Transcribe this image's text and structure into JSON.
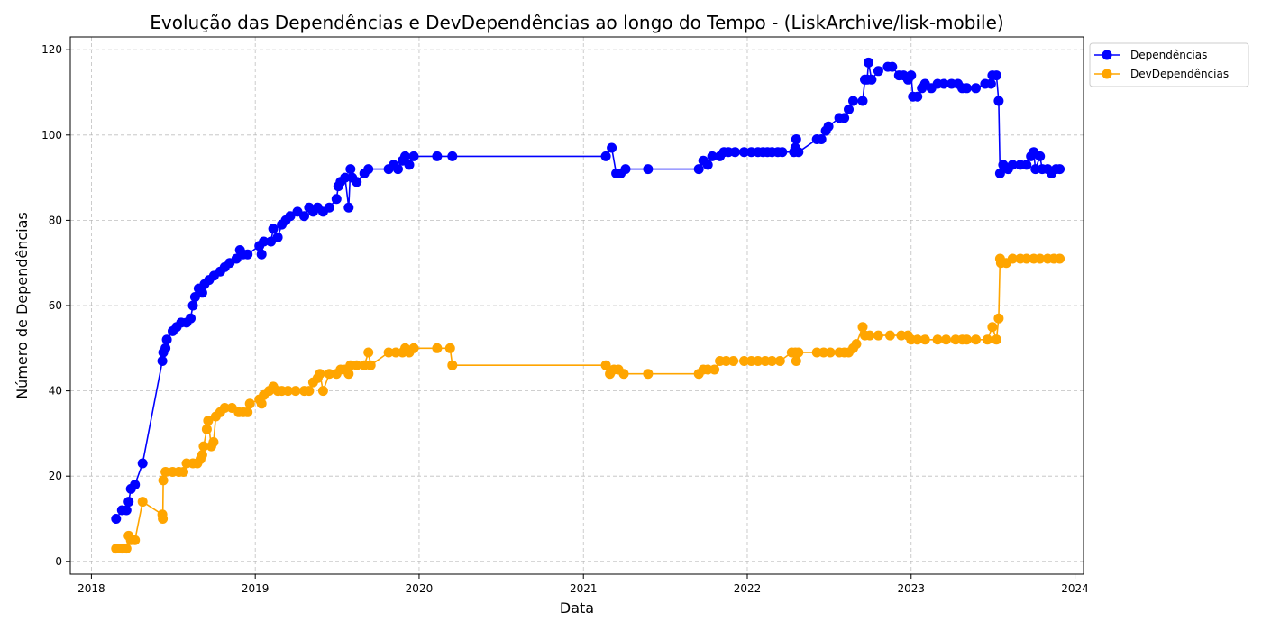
{
  "chart_data": {
    "type": "line",
    "title": "Evolução das Dependências e DevDependências ao longo do Tempo - (LiskArchive/lisk-mobile)",
    "xlabel": "Data",
    "ylabel": "Número de Dependências",
    "xlim": [
      "2017-11-15",
      "2024-01-20"
    ],
    "ylim": [
      -3,
      123
    ],
    "x_ticks": [
      "2018",
      "2019",
      "2020",
      "2021",
      "2022",
      "2023",
      "2024"
    ],
    "y_ticks": [
      0,
      20,
      40,
      60,
      80,
      100,
      120
    ],
    "grid": true,
    "legend_position": "upper-right outside",
    "colors": {
      "Dependências": "#0000ff",
      "DevDependências": "#ffa500"
    },
    "series": [
      {
        "name": "Dependências",
        "color": "#0000ff",
        "points": [
          [
            "2018-02-25",
            10
          ],
          [
            "2018-03-10",
            12
          ],
          [
            "2018-03-20",
            12
          ],
          [
            "2018-03-25",
            14
          ],
          [
            "2018-03-30",
            17
          ],
          [
            "2018-04-08",
            18
          ],
          [
            "2018-04-25",
            23
          ],
          [
            "2018-06-08",
            47
          ],
          [
            "2018-06-10",
            49
          ],
          [
            "2018-06-15",
            50
          ],
          [
            "2018-06-18",
            52
          ],
          [
            "2018-07-01",
            54
          ],
          [
            "2018-07-10",
            55
          ],
          [
            "2018-07-20",
            56
          ],
          [
            "2018-08-01",
            56
          ],
          [
            "2018-08-10",
            57
          ],
          [
            "2018-08-15",
            60
          ],
          [
            "2018-08-20",
            62
          ],
          [
            "2018-08-28",
            64
          ],
          [
            "2018-09-05",
            63
          ],
          [
            "2018-09-10",
            65
          ],
          [
            "2018-09-20",
            66
          ],
          [
            "2018-10-01",
            67
          ],
          [
            "2018-10-15",
            68
          ],
          [
            "2018-10-25",
            69
          ],
          [
            "2018-11-05",
            70
          ],
          [
            "2018-11-20",
            71
          ],
          [
            "2018-11-28",
            73
          ],
          [
            "2018-12-05",
            72
          ],
          [
            "2018-12-15",
            72
          ],
          [
            "2019-01-10",
            74
          ],
          [
            "2019-01-15",
            72
          ],
          [
            "2019-01-20",
            75
          ],
          [
            "2019-02-05",
            75
          ],
          [
            "2019-02-10",
            78
          ],
          [
            "2019-02-20",
            76
          ],
          [
            "2019-03-01",
            79
          ],
          [
            "2019-03-10",
            80
          ],
          [
            "2019-03-20",
            81
          ],
          [
            "2019-04-05",
            82
          ],
          [
            "2019-04-20",
            81
          ],
          [
            "2019-05-01",
            83
          ],
          [
            "2019-05-10",
            82
          ],
          [
            "2019-05-20",
            83
          ],
          [
            "2019-06-01",
            82
          ],
          [
            "2019-06-15",
            83
          ],
          [
            "2019-07-01",
            85
          ],
          [
            "2019-07-05",
            88
          ],
          [
            "2019-07-10",
            89
          ],
          [
            "2019-07-20",
            90
          ],
          [
            "2019-07-28",
            83
          ],
          [
            "2019-08-01",
            92
          ],
          [
            "2019-08-05",
            90
          ],
          [
            "2019-08-15",
            89
          ],
          [
            "2019-09-01",
            91
          ],
          [
            "2019-09-10",
            92
          ],
          [
            "2019-10-25",
            92
          ],
          [
            "2019-11-05",
            93
          ],
          [
            "2019-11-15",
            92
          ],
          [
            "2019-11-25",
            94
          ],
          [
            "2019-12-01",
            95
          ],
          [
            "2019-12-10",
            93
          ],
          [
            "2019-12-20",
            95
          ],
          [
            "2020-02-10",
            95
          ],
          [
            "2020-03-15",
            95
          ],
          [
            "2021-02-20",
            95
          ],
          [
            "2021-03-05",
            97
          ],
          [
            "2021-03-15",
            91
          ],
          [
            "2021-03-25",
            91
          ],
          [
            "2021-04-05",
            92
          ],
          [
            "2021-05-25",
            92
          ],
          [
            "2021-09-15",
            92
          ],
          [
            "2021-09-25",
            94
          ],
          [
            "2021-10-05",
            93
          ],
          [
            "2021-10-15",
            95
          ],
          [
            "2021-11-01",
            95
          ],
          [
            "2021-11-10",
            96
          ],
          [
            "2021-11-20",
            96
          ],
          [
            "2021-12-05",
            96
          ],
          [
            "2021-12-25",
            96
          ],
          [
            "2022-01-10",
            96
          ],
          [
            "2022-01-25",
            96
          ],
          [
            "2022-02-05",
            96
          ],
          [
            "2022-02-15",
            96
          ],
          [
            "2022-02-25",
            96
          ],
          [
            "2022-03-10",
            96
          ],
          [
            "2022-03-20",
            96
          ],
          [
            "2022-04-15",
            96
          ],
          [
            "2022-04-18",
            97
          ],
          [
            "2022-04-20",
            99
          ],
          [
            "2022-04-25",
            96
          ],
          [
            "2022-06-05",
            99
          ],
          [
            "2022-06-15",
            99
          ],
          [
            "2022-06-25",
            101
          ],
          [
            "2022-07-01",
            102
          ],
          [
            "2022-07-25",
            104
          ],
          [
            "2022-08-05",
            104
          ],
          [
            "2022-08-15",
            106
          ],
          [
            "2022-08-25",
            108
          ],
          [
            "2022-09-15",
            108
          ],
          [
            "2022-09-20",
            113
          ],
          [
            "2022-09-25",
            113
          ],
          [
            "2022-09-28",
            117
          ],
          [
            "2022-10-05",
            113
          ],
          [
            "2022-10-20",
            115
          ],
          [
            "2022-11-10",
            116
          ],
          [
            "2022-11-20",
            116
          ],
          [
            "2022-12-05",
            114
          ],
          [
            "2022-12-15",
            114
          ],
          [
            "2022-12-25",
            113
          ],
          [
            "2023-01-01",
            114
          ],
          [
            "2023-01-05",
            109
          ],
          [
            "2023-01-15",
            109
          ],
          [
            "2023-01-25",
            111
          ],
          [
            "2023-02-01",
            112
          ],
          [
            "2023-02-15",
            111
          ],
          [
            "2023-03-01",
            112
          ],
          [
            "2023-03-15",
            112
          ],
          [
            "2023-04-01",
            112
          ],
          [
            "2023-04-15",
            112
          ],
          [
            "2023-04-25",
            111
          ],
          [
            "2023-05-05",
            111
          ],
          [
            "2023-05-25",
            111
          ],
          [
            "2023-06-15",
            112
          ],
          [
            "2023-06-28",
            112
          ],
          [
            "2023-07-01",
            114
          ],
          [
            "2023-07-10",
            114
          ],
          [
            "2023-07-15",
            108
          ],
          [
            "2023-07-18",
            91
          ],
          [
            "2023-07-25",
            93
          ],
          [
            "2023-08-05",
            92
          ],
          [
            "2023-08-15",
            93
          ],
          [
            "2023-09-01",
            93
          ],
          [
            "2023-09-15",
            93
          ],
          [
            "2023-09-25",
            95
          ],
          [
            "2023-10-01",
            96
          ],
          [
            "2023-10-05",
            92
          ],
          [
            "2023-10-15",
            95
          ],
          [
            "2023-10-20",
            92
          ],
          [
            "2023-11-01",
            92
          ],
          [
            "2023-11-10",
            91
          ],
          [
            "2023-11-20",
            92
          ],
          [
            "2023-11-28",
            92
          ]
        ]
      },
      {
        "name": "DevDependências",
        "color": "#ffa500",
        "points": [
          [
            "2018-02-25",
            3
          ],
          [
            "2018-03-10",
            3
          ],
          [
            "2018-03-20",
            3
          ],
          [
            "2018-03-25",
            6
          ],
          [
            "2018-03-30",
            5
          ],
          [
            "2018-04-08",
            5
          ],
          [
            "2018-04-25",
            14
          ],
          [
            "2018-06-08",
            11
          ],
          [
            "2018-06-09",
            10
          ],
          [
            "2018-06-10",
            19
          ],
          [
            "2018-06-15",
            21
          ],
          [
            "2018-07-01",
            21
          ],
          [
            "2018-07-15",
            21
          ],
          [
            "2018-07-25",
            21
          ],
          [
            "2018-08-01",
            23
          ],
          [
            "2018-08-15",
            23
          ],
          [
            "2018-08-25",
            23
          ],
          [
            "2018-09-01",
            24
          ],
          [
            "2018-09-05",
            25
          ],
          [
            "2018-09-08",
            27
          ],
          [
            "2018-09-15",
            31
          ],
          [
            "2018-09-18",
            33
          ],
          [
            "2018-09-25",
            27
          ],
          [
            "2018-09-30",
            28
          ],
          [
            "2018-10-05",
            34
          ],
          [
            "2018-10-15",
            35
          ],
          [
            "2018-10-25",
            36
          ],
          [
            "2018-11-10",
            36
          ],
          [
            "2018-11-25",
            35
          ],
          [
            "2018-12-05",
            35
          ],
          [
            "2018-12-15",
            35
          ],
          [
            "2018-12-20",
            37
          ],
          [
            "2019-01-10",
            38
          ],
          [
            "2019-01-15",
            37
          ],
          [
            "2019-01-20",
            39
          ],
          [
            "2019-02-01",
            40
          ],
          [
            "2019-02-10",
            41
          ],
          [
            "2019-02-20",
            40
          ],
          [
            "2019-03-01",
            40
          ],
          [
            "2019-03-15",
            40
          ],
          [
            "2019-04-01",
            40
          ],
          [
            "2019-04-20",
            40
          ],
          [
            "2019-05-01",
            40
          ],
          [
            "2019-05-10",
            42
          ],
          [
            "2019-05-20",
            43
          ],
          [
            "2019-05-25",
            44
          ],
          [
            "2019-06-01",
            40
          ],
          [
            "2019-06-15",
            44
          ],
          [
            "2019-07-01",
            44
          ],
          [
            "2019-07-10",
            45
          ],
          [
            "2019-07-20",
            45
          ],
          [
            "2019-07-28",
            44
          ],
          [
            "2019-08-01",
            46
          ],
          [
            "2019-08-15",
            46
          ],
          [
            "2019-09-01",
            46
          ],
          [
            "2019-09-10",
            49
          ],
          [
            "2019-09-15",
            46
          ],
          [
            "2019-10-25",
            49
          ],
          [
            "2019-11-10",
            49
          ],
          [
            "2019-11-25",
            49
          ],
          [
            "2019-12-01",
            50
          ],
          [
            "2019-12-10",
            49
          ],
          [
            "2019-12-20",
            50
          ],
          [
            "2020-02-10",
            50
          ],
          [
            "2020-03-10",
            50
          ],
          [
            "2020-03-15",
            46
          ],
          [
            "2021-02-20",
            46
          ],
          [
            "2021-03-01",
            44
          ],
          [
            "2021-03-10",
            45
          ],
          [
            "2021-03-20",
            45
          ],
          [
            "2021-04-01",
            44
          ],
          [
            "2021-05-25",
            44
          ],
          [
            "2021-09-15",
            44
          ],
          [
            "2021-09-25",
            45
          ],
          [
            "2021-10-05",
            45
          ],
          [
            "2021-10-20",
            45
          ],
          [
            "2021-11-01",
            47
          ],
          [
            "2021-11-15",
            47
          ],
          [
            "2021-12-01",
            47
          ],
          [
            "2021-12-25",
            47
          ],
          [
            "2022-01-10",
            47
          ],
          [
            "2022-01-25",
            47
          ],
          [
            "2022-02-10",
            47
          ],
          [
            "2022-02-25",
            47
          ],
          [
            "2022-03-15",
            47
          ],
          [
            "2022-04-10",
            49
          ],
          [
            "2022-04-18",
            49
          ],
          [
            "2022-04-20",
            47
          ],
          [
            "2022-04-25",
            49
          ],
          [
            "2022-06-05",
            49
          ],
          [
            "2022-06-20",
            49
          ],
          [
            "2022-07-05",
            49
          ],
          [
            "2022-07-25",
            49
          ],
          [
            "2022-08-05",
            49
          ],
          [
            "2022-08-15",
            49
          ],
          [
            "2022-08-25",
            50
          ],
          [
            "2022-09-01",
            51
          ],
          [
            "2022-09-15",
            55
          ],
          [
            "2022-09-20",
            53
          ],
          [
            "2022-10-01",
            53
          ],
          [
            "2022-10-20",
            53
          ],
          [
            "2022-11-15",
            53
          ],
          [
            "2022-12-10",
            53
          ],
          [
            "2022-12-25",
            53
          ],
          [
            "2023-01-01",
            52
          ],
          [
            "2023-01-15",
            52
          ],
          [
            "2023-02-01",
            52
          ],
          [
            "2023-03-01",
            52
          ],
          [
            "2023-03-20",
            52
          ],
          [
            "2023-04-10",
            52
          ],
          [
            "2023-04-25",
            52
          ],
          [
            "2023-05-05",
            52
          ],
          [
            "2023-05-25",
            52
          ],
          [
            "2023-06-20",
            52
          ],
          [
            "2023-07-01",
            55
          ],
          [
            "2023-07-10",
            52
          ],
          [
            "2023-07-15",
            57
          ],
          [
            "2023-07-18",
            71
          ],
          [
            "2023-07-20",
            70
          ],
          [
            "2023-08-01",
            70
          ],
          [
            "2023-08-15",
            71
          ],
          [
            "2023-09-01",
            71
          ],
          [
            "2023-09-15",
            71
          ],
          [
            "2023-10-01",
            71
          ],
          [
            "2023-10-15",
            71
          ],
          [
            "2023-11-01",
            71
          ],
          [
            "2023-11-15",
            71
          ],
          [
            "2023-11-28",
            71
          ]
        ]
      }
    ]
  }
}
